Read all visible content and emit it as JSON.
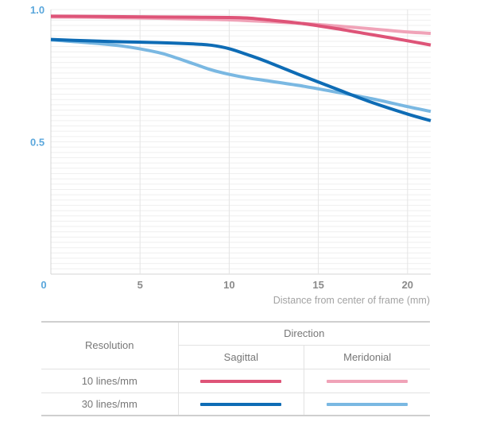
{
  "chart_data": {
    "type": "line",
    "xlabel": "Distance from center of frame (mm)",
    "ylabel": "",
    "xlim": [
      0,
      21.3
    ],
    "ylim": [
      0,
      1.0
    ],
    "xticks": [
      {
        "value": 0,
        "label": "0",
        "color": "#5aa7dc"
      },
      {
        "value": 5,
        "label": "5"
      },
      {
        "value": 10,
        "label": "10"
      },
      {
        "value": 15,
        "label": "15"
      },
      {
        "value": 20,
        "label": "20"
      }
    ],
    "yticks": [
      {
        "value": 1.0,
        "label": "1.0"
      },
      {
        "value": 0.5,
        "label": "0.5"
      }
    ],
    "ytick_color": "#5aa7dc",
    "grid": "horizontal",
    "series": [
      {
        "key": "10-meridional",
        "color": "#f0a3b8",
        "width": 4,
        "x": [
          0,
          2,
          4,
          6,
          8,
          10,
          12,
          14,
          16,
          18,
          20,
          21.3
        ],
        "y": [
          0.972,
          0.971,
          0.969,
          0.967,
          0.964,
          0.961,
          0.955,
          0.948,
          0.938,
          0.927,
          0.915,
          0.91
        ]
      },
      {
        "key": "10-sagittal",
        "color": "#de5478",
        "width": 4,
        "x": [
          0,
          2,
          4,
          6,
          8,
          10,
          11,
          12,
          14,
          16,
          18,
          20,
          21.3
        ],
        "y": [
          0.975,
          0.974,
          0.973,
          0.972,
          0.971,
          0.97,
          0.968,
          0.962,
          0.948,
          0.928,
          0.905,
          0.882,
          0.866
        ]
      },
      {
        "key": "30-meridional",
        "color": "#7ab8e2",
        "width": 4,
        "x": [
          0,
          2,
          4,
          6,
          7,
          8,
          9,
          10,
          11,
          12,
          14,
          16,
          18,
          20,
          21.3
        ],
        "y": [
          0.885,
          0.875,
          0.862,
          0.838,
          0.818,
          0.795,
          0.772,
          0.755,
          0.742,
          0.732,
          0.712,
          0.688,
          0.663,
          0.633,
          0.615
        ]
      },
      {
        "key": "30-sagittal",
        "color": "#0e6cb5",
        "width": 4,
        "x": [
          0,
          2,
          4,
          6,
          8,
          9,
          10,
          11,
          12,
          14,
          16,
          18,
          20,
          21.3
        ],
        "y": [
          0.887,
          0.882,
          0.878,
          0.875,
          0.87,
          0.865,
          0.852,
          0.83,
          0.806,
          0.752,
          0.7,
          0.649,
          0.605,
          0.58
        ]
      }
    ]
  },
  "legend": {
    "row_header": "Resolution",
    "column_header": "Direction",
    "col_sagittal": "Sagittal",
    "col_meridional": "Meridonial",
    "rows": [
      {
        "label": "10 lines/mm",
        "sagittal_color": "#de5478",
        "meridional_color": "#f0a3b8"
      },
      {
        "label": "30 lines/mm",
        "sagittal_color": "#0e6cb5",
        "meridional_color": "#7ab8e2"
      }
    ]
  }
}
